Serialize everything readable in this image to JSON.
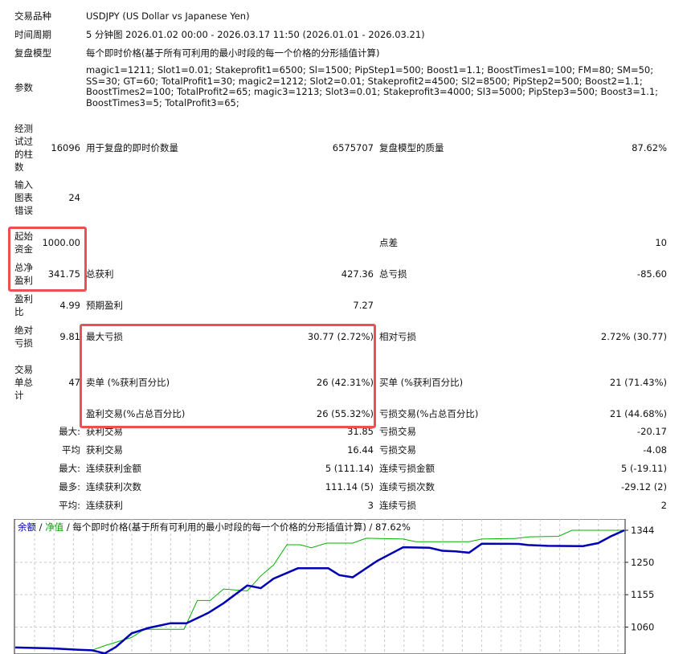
{
  "header": [
    {
      "label": "交易品种",
      "value": "USDJPY (US Dollar vs Japanese Yen)"
    },
    {
      "label": "时间周期",
      "value": "5 分钟图 2026.01.02 00:00 - 2026.03.17 11:50 (2026.01.01 - 2026.03.21)"
    },
    {
      "label": "复盘模型",
      "value": "每个即时价格(基于所有可利用的最小时段的每一个价格的分形插值计算)"
    }
  ],
  "params": {
    "label": "参数",
    "value": "magic1=1211; Slot1=0.01; Stakeprofit1=6500; Sl=1500; PipStep1=500; Boost1=1.1; BoostTimes1=100; FM=80; SM=50; SS=30; GT=60; TotalProfit1=30; magic2=1212; Slot2=0.01; Stakeprofit2=4500; Sl2=8500; PipStep2=500; Boost2=1.1; BoostTimes2=100; TotalProfit2=65; magic3=1213; Slot3=0.01; Stakeprofit3=4000; Sl3=5000; PipStep3=500; Boost3=1.1; BoostTimes3=5; TotalProfit3=65;"
  },
  "stats": {
    "bars": {
      "label": "经测试过的柱数",
      "value": "16096",
      "l2": "用于复盘的即时价数量",
      "v2": "6575707",
      "l3": "复盘模型的质量",
      "v3": "87.62%"
    },
    "errors": {
      "label": "输入图表错误",
      "value": "24"
    },
    "deposit": {
      "label": "起始资金",
      "value": "1000.00",
      "l3": "点差",
      "v3": "10"
    },
    "net": {
      "label": "总净盈利",
      "value": "341.75",
      "l2": "总获利",
      "v2": "427.36",
      "l3": "总亏损",
      "v3": "-85.60"
    },
    "pf": {
      "label": "盈利比",
      "value": "4.99",
      "l2": "预期盈利",
      "v2": "7.27"
    },
    "dd": {
      "label": "绝对亏损",
      "value": "9.81",
      "l2": "最大亏损",
      "v2": "30.77 (2.72%)",
      "l3": "相对亏损",
      "v3": "2.72% (30.77)"
    },
    "trades": {
      "label": "交易单总计",
      "value": "47",
      "l2": "卖单 (%获利百分比)",
      "v2": "26 (42.31%)",
      "l3": "买单 (%获利百分比)",
      "v3": "21 (71.43%)"
    },
    "wins": {
      "l2": "盈利交易(%占总百分比)",
      "v2": "26 (55.32%)",
      "l3": "亏损交易(%占总百分比)",
      "v3": "21 (44.68%)"
    },
    "largest": {
      "value": "最大:",
      "l2": "获利交易",
      "v2": "31.85",
      "l3": "亏损交易",
      "v3": "-20.17"
    },
    "average": {
      "value": "平均",
      "l2": "获利交易",
      "v2": "16.44",
      "l3": "亏损交易",
      "v3": "-4.08"
    },
    "maxcons": {
      "value": "最大:",
      "l2": "连续获利金额",
      "v2": "5 (111.14)",
      "l3": "连续亏损金额",
      "v3": "5 (-19.11)"
    },
    "maxconsn": {
      "value": "最多:",
      "l2": "连续获利次数",
      "v2": "111.14 (5)",
      "l3": "连续亏损次数",
      "v3": "-29.12 (2)"
    },
    "avgcons": {
      "value": "平均:",
      "l2": "连续获利",
      "v2": "3",
      "l3": "连续亏损",
      "v3": "2"
    }
  },
  "chart_data": {
    "type": "line",
    "legend": {
      "balance": "余额",
      "sep1": " / ",
      "equity": "净值",
      "rest": " / 每个即时价格(基于所有可利用的最小时段的每一个价格的分形插值计算) / 87.62%"
    },
    "yticks": [
      1344,
      1250,
      1155,
      1060
    ],
    "ylim": [
      981,
      1377
    ],
    "xlim": [
      0,
      100
    ],
    "grid": true,
    "series": [
      {
        "name": "余额",
        "color": "#0000b4",
        "x": [
          0,
          6.1,
          10.4,
          12.6,
          14.7,
          16.5,
          19.1,
          21.9,
          25.5,
          28.1,
          31.7,
          34.2,
          38.1,
          40.3,
          42.4,
          46.4,
          51.4,
          53.2,
          55.4,
          59.4,
          63.7,
          68,
          70.1,
          72.3,
          74.5,
          76.6,
          82.7,
          84.2,
          87.4,
          93.2,
          95.7,
          97.8,
          100
        ],
        "y": [
          1000,
          997.5,
          993.5,
          991.9,
          983,
          1001.5,
          1041.6,
          1057.7,
          1071.3,
          1071.3,
          1101.8,
          1129.9,
          1182,
          1174,
          1202,
          1232.5,
          1232.5,
          1212.5,
          1206,
          1254,
          1294.3,
          1292.7,
          1283.9,
          1282.2,
          1278.2,
          1304.7,
          1303.9,
          1300.7,
          1298.3,
          1297.5,
          1306.3,
          1326.4,
          1344
        ]
      },
      {
        "name": "净值",
        "color": "#00b400",
        "x": [
          0,
          6.1,
          12.6,
          14.7,
          19.1,
          21.2,
          27.7,
          29.9,
          32,
          34.2,
          38.1,
          40.3,
          42.4,
          44.6,
          46.8,
          48.6,
          51.1,
          55.4,
          57.6,
          63.7,
          65.8,
          74.5,
          76.6,
          82,
          84.5,
          89.2,
          91.4,
          100
        ],
        "y": [
          1000,
          996,
          992,
          1005.6,
          1029.6,
          1053.7,
          1053.7,
          1137.9,
          1137.9,
          1171.6,
          1166,
          1210,
          1242,
          1301.5,
          1301.5,
          1292.7,
          1306.3,
          1306.3,
          1320.7,
          1318.3,
          1310.3,
          1310.3,
          1318.3,
          1320,
          1324.8,
          1326.4,
          1344,
          1344
        ]
      }
    ]
  }
}
